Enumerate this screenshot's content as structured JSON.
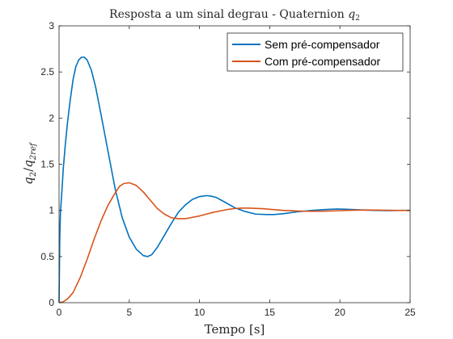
{
  "chart_data": {
    "type": "line",
    "title_text": "Resposta a um sinal degrau - Quaternion ",
    "title_symbol": "q",
    "title_subscript": "2",
    "xlabel": "Tempo [s]",
    "ylabel_num_symbol": "q",
    "ylabel_num_sub": "2",
    "ylabel_den_symbol": "q",
    "ylabel_den_sub": "2ref",
    "xlim": [
      0,
      25
    ],
    "ylim": [
      0,
      3
    ],
    "xticks": [
      0,
      5,
      10,
      15,
      20,
      25
    ],
    "yticks": [
      0,
      0.5,
      1,
      1.5,
      2,
      2.5,
      3
    ],
    "xtick_labels": [
      "0",
      "5",
      "10",
      "15",
      "20",
      "25"
    ],
    "ytick_labels": [
      "0",
      "0.5",
      "1",
      "1.5",
      "2",
      "2.5",
      "3"
    ],
    "grid": false,
    "legend_position": "top-right",
    "series": [
      {
        "name": "Sem pré-compensador",
        "color": "#0072BD",
        "x": [
          0,
          0.05,
          0.1,
          0.2,
          0.3,
          0.45,
          0.6,
          0.8,
          1.0,
          1.2,
          1.4,
          1.6,
          1.8,
          2.0,
          2.3,
          2.6,
          3.0,
          3.5,
          4.0,
          4.5,
          5.0,
          5.5,
          6.0,
          6.3,
          6.6,
          7.0,
          7.5,
          8.0,
          8.5,
          9.0,
          9.5,
          10.0,
          10.5,
          10.8,
          11.2,
          11.8,
          12.5,
          13.2,
          14.0,
          14.8,
          15.3,
          16.0,
          17.0,
          18.0,
          19.0,
          19.8,
          20.5,
          21.5,
          22.5,
          23.5,
          24.5,
          25.0
        ],
        "y": [
          0.0,
          0.7,
          0.98,
          1.2,
          1.45,
          1.72,
          1.95,
          2.2,
          2.42,
          2.56,
          2.63,
          2.66,
          2.66,
          2.63,
          2.52,
          2.34,
          2.03,
          1.63,
          1.23,
          0.92,
          0.71,
          0.58,
          0.51,
          0.5,
          0.52,
          0.6,
          0.73,
          0.86,
          0.98,
          1.06,
          1.12,
          1.15,
          1.16,
          1.155,
          1.14,
          1.09,
          1.03,
          0.99,
          0.96,
          0.955,
          0.955,
          0.965,
          0.985,
          1.0,
          1.01,
          1.015,
          1.012,
          1.005,
          1.0,
          0.998,
          1.0,
          1.0
        ]
      },
      {
        "name": "Com pré-compensador",
        "color": "#D95319",
        "x": [
          0,
          0.3,
          0.6,
          1.0,
          1.5,
          2.0,
          2.5,
          3.0,
          3.5,
          4.0,
          4.3,
          4.6,
          5.0,
          5.5,
          6.0,
          6.5,
          7.0,
          7.5,
          8.0,
          8.5,
          9.0,
          9.5,
          10.0,
          10.5,
          11.0,
          11.5,
          12.0,
          12.5,
          13.0,
          13.5,
          14.0,
          14.5,
          15.0,
          16.0,
          17.0,
          18.0,
          19.0,
          20.0,
          21.0,
          22.0,
          23.0,
          24.0,
          25.0
        ],
        "y": [
          0.0,
          0.01,
          0.04,
          0.11,
          0.27,
          0.47,
          0.69,
          0.89,
          1.06,
          1.19,
          1.26,
          1.29,
          1.3,
          1.27,
          1.2,
          1.11,
          1.02,
          0.96,
          0.92,
          0.91,
          0.91,
          0.925,
          0.94,
          0.96,
          0.98,
          0.995,
          1.01,
          1.02,
          1.025,
          1.025,
          1.022,
          1.018,
          1.012,
          1.0,
          0.993,
          0.99,
          0.992,
          0.997,
          1.002,
          1.004,
          1.002,
          1.0,
          0.999
        ]
      }
    ]
  }
}
